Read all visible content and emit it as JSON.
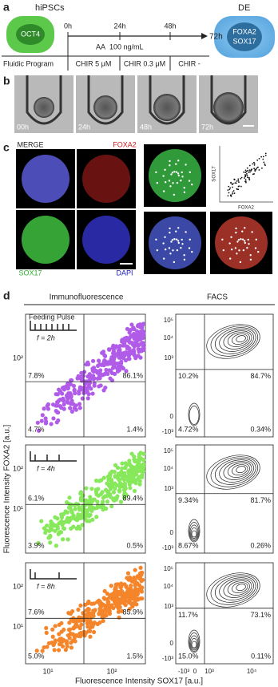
{
  "panel_a": {
    "label": "a",
    "start": "hiPSCs",
    "start_marker": "OCT4",
    "times": [
      "0h",
      "24h",
      "48h",
      "72h"
    ],
    "aa": "AA",
    "aa_conc": "100 ng/mL",
    "program_label": "Fluidic Program",
    "chir": [
      "CHIR 5 μM",
      "CHIR 0.3 μM",
      "CHIR -"
    ],
    "end": "DE",
    "end_markers": [
      "FOXA2",
      "SOX17"
    ]
  },
  "panel_b": {
    "label": "b",
    "times": [
      "00h",
      "24h",
      "48h",
      "72h"
    ]
  },
  "panel_c": {
    "label": "c",
    "channels": [
      "MERGE",
      "FOXA2",
      "SOX17",
      "DAPI"
    ],
    "inset_x": "FOXA2",
    "inset_y": "SOX17"
  },
  "panel_d": {
    "label": "d",
    "headers": [
      "Immunofluorescence",
      "FACS"
    ],
    "pulse_label": "Feeding Pulse",
    "x_title": "Fluorescence Intensity SOX17 [a.u.]",
    "y_title": "Fluorescence Intensity FOXA2 [a.u.]",
    "if_xticks": [
      "10¹",
      "10²"
    ],
    "facs_yticks": [
      "10⁵",
      "10⁴",
      "10³",
      "0",
      "-10³"
    ],
    "facs_xticks": [
      "-10³",
      "0",
      "10³",
      "10⁴"
    ],
    "rows": [
      {
        "frequency": "f = 2h",
        "color": "#b05ce8",
        "if_yticks": [
          "10²"
        ],
        "if_quadrants": [
          "7.8%",
          "86.1%",
          "4.7%",
          "1.4%"
        ],
        "facs_quadrants": [
          "10.2%",
          "84.7%",
          "4.72%",
          "0.34%"
        ]
      },
      {
        "frequency": "f = 4h",
        "color": "#86e85a",
        "if_yticks": [
          "10²",
          "10¹"
        ],
        "if_quadrants": [
          "6.1%",
          "89.4%",
          "3.9%",
          "0.5%"
        ],
        "facs_quadrants": [
          "9.34%",
          "81.7%",
          "8.67%",
          "0.26%"
        ]
      },
      {
        "frequency": "f = 8h",
        "color": "#f5852a",
        "if_yticks": [
          "10²",
          "10¹"
        ],
        "if_quadrants": [
          "7.6%",
          "85.9%",
          "5.0%",
          "1.5%"
        ],
        "facs_quadrants": [
          "11.7%",
          "73.1%",
          "15.0%",
          "0.11%"
        ]
      }
    ]
  }
}
